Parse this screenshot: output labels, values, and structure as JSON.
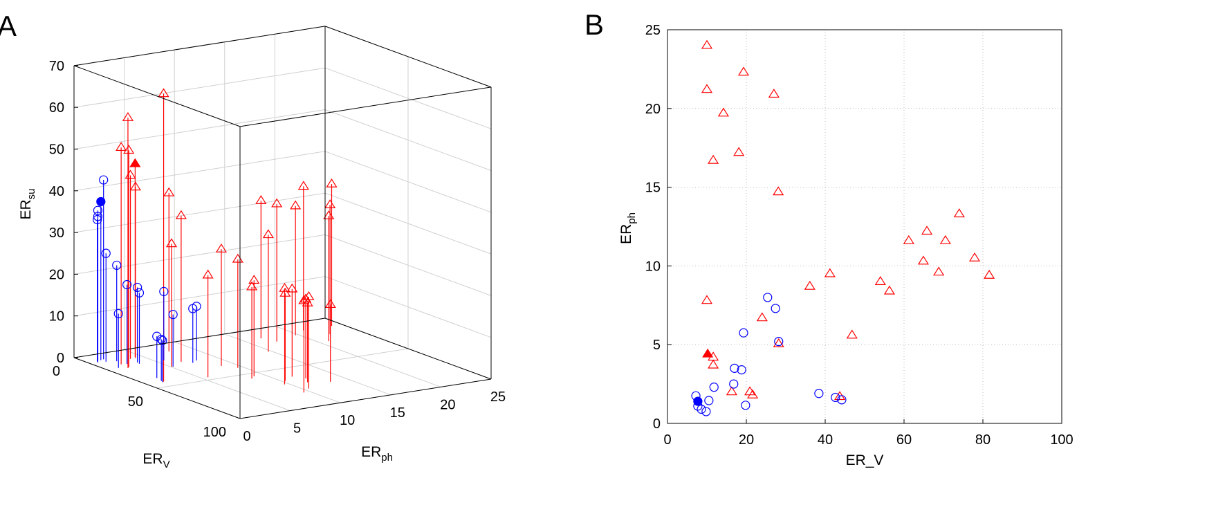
{
  "panel_labels": [
    "A",
    "B"
  ],
  "colors": {
    "triangle": "#ff0000",
    "circle": "#0000ff",
    "grid": "#d0d0d0",
    "axis": "#000000"
  },
  "chart_data": [
    {
      "type": "scatter3d-stem",
      "panel": "A",
      "xlabel": {
        "base": "ER",
        "sub": "V"
      },
      "ylabel": {
        "base": "ER",
        "sub": "ph"
      },
      "zlabel": {
        "base": "ER",
        "sub": "su"
      },
      "xlim": [
        0,
        100
      ],
      "ylim": [
        0,
        25
      ],
      "zlim": [
        0,
        70
      ],
      "xticks": [
        0,
        50,
        100
      ],
      "yticks": [
        0,
        5,
        10,
        15,
        20,
        25
      ],
      "zticks": [
        0,
        10,
        20,
        30,
        40,
        50,
        60,
        70
      ],
      "grid": true,
      "series": [
        {
          "name": "triangles",
          "marker": "triangle",
          "filled": false,
          "color": "#ff0000",
          "points": [
            [
              10.0,
              24.0,
              34
            ],
            [
              10.0,
              21.2,
              34.5
            ],
            [
              19.3,
              22.3,
              31
            ],
            [
              14.2,
              19.7,
              31
            ],
            [
              27.0,
              20.9,
              30
            ],
            [
              11.6,
              16.7,
              33
            ],
            [
              18.1,
              17.2,
              33
            ],
            [
              28.1,
              14.7,
              28
            ],
            [
              74.0,
              13.3,
              18.5
            ],
            [
              65.8,
              12.2,
              19
            ],
            [
              61.2,
              11.6,
              21
            ],
            [
              70.5,
              11.6,
              19
            ],
            [
              64.9,
              10.3,
              21
            ],
            [
              77.9,
              10.5,
              22
            ],
            [
              68.8,
              9.6,
              23
            ],
            [
              81.6,
              9.4,
              22
            ],
            [
              41.2,
              9.5,
              26
            ],
            [
              54.0,
              9.0,
              23
            ],
            [
              56.3,
              8.4,
              22
            ],
            [
              36.1,
              8.7,
              28
            ],
            [
              10.0,
              7.8,
              38
            ],
            [
              24.0,
              6.7,
              35
            ],
            [
              46.8,
              5.6,
              24.5
            ],
            [
              28.2,
              5.05,
              29.5
            ],
            [
              11.6,
              4.2,
              41
            ],
            [
              11.6,
              3.7,
              44
            ],
            [
              16.3,
              2.0,
              52
            ],
            [
              20.9,
              2.0,
              52
            ],
            [
              21.6,
              1.8,
              60
            ],
            [
              43.7,
              1.7,
              69
            ]
          ]
        },
        {
          "name": "triangle-highlight",
          "marker": "triangle",
          "filled": true,
          "color": "#ff0000",
          "points": [
            [
              10.2,
              4.4,
              46.3
            ]
          ]
        },
        {
          "name": "circles",
          "marker": "circle",
          "filled": false,
          "color": "#0000ff",
          "points": [
            [
              25.4,
              8.0,
              13
            ],
            [
              27.4,
              7.3,
              13
            ],
            [
              19.3,
              5.75,
              16.5
            ],
            [
              28.2,
              5.2,
              12.5
            ],
            [
              17.0,
              3.5,
              18
            ],
            [
              18.8,
              3.4,
              17
            ],
            [
              11.8,
              2.3,
              23
            ],
            [
              16.8,
              2.5,
              19
            ],
            [
              38.4,
              1.9,
              10
            ],
            [
              42.6,
              1.65,
              10
            ],
            [
              44.2,
              1.5,
              10
            ],
            [
              19.8,
              1.15,
              13
            ],
            [
              10.5,
              1.45,
              26
            ],
            [
              7.2,
              1.75,
              43
            ],
            [
              7.7,
              1.1,
              36
            ],
            [
              8.6,
              0.9,
              34
            ],
            [
              9.8,
              0.75,
              35
            ]
          ]
        },
        {
          "name": "circle-highlight",
          "marker": "circle",
          "filled": true,
          "color": "#0000ff",
          "points": [
            [
              7.7,
              1.4,
              38
            ]
          ]
        }
      ]
    },
    {
      "type": "scatter",
      "panel": "B",
      "xlabel": "ER_V",
      "ylabel": {
        "base": "ER",
        "sub": "ph"
      },
      "xlim": [
        0,
        100
      ],
      "ylim": [
        0,
        25
      ],
      "xticks": [
        0,
        20,
        40,
        60,
        80,
        100
      ],
      "yticks": [
        0,
        5,
        10,
        15,
        20,
        25
      ],
      "grid": true,
      "series": [
        {
          "name": "triangles",
          "marker": "triangle",
          "filled": false,
          "color": "#ff0000",
          "points": [
            [
              10.0,
              24.0
            ],
            [
              10.0,
              21.2
            ],
            [
              19.3,
              22.3
            ],
            [
              14.2,
              19.7
            ],
            [
              27.0,
              20.9
            ],
            [
              11.6,
              16.7
            ],
            [
              18.1,
              17.2
            ],
            [
              28.1,
              14.7
            ],
            [
              74.0,
              13.3
            ],
            [
              65.8,
              12.2
            ],
            [
              61.2,
              11.6
            ],
            [
              70.5,
              11.6
            ],
            [
              64.9,
              10.3
            ],
            [
              77.9,
              10.5
            ],
            [
              68.8,
              9.6
            ],
            [
              81.6,
              9.4
            ],
            [
              41.2,
              9.5
            ],
            [
              54.0,
              9.0
            ],
            [
              56.3,
              8.4
            ],
            [
              36.1,
              8.7
            ],
            [
              10.0,
              7.8
            ],
            [
              24.0,
              6.7
            ],
            [
              46.8,
              5.6
            ],
            [
              28.2,
              5.05
            ],
            [
              11.6,
              4.2
            ],
            [
              11.6,
              3.7
            ],
            [
              16.3,
              2.0
            ],
            [
              20.9,
              2.0
            ],
            [
              21.6,
              1.8
            ],
            [
              43.7,
              1.7
            ]
          ]
        },
        {
          "name": "triangle-highlight",
          "marker": "triangle",
          "filled": true,
          "color": "#ff0000",
          "points": [
            [
              10.2,
              4.4
            ]
          ]
        },
        {
          "name": "circles",
          "marker": "circle",
          "filled": false,
          "color": "#0000ff",
          "points": [
            [
              25.4,
              8.0
            ],
            [
              27.4,
              7.3
            ],
            [
              19.3,
              5.75
            ],
            [
              28.2,
              5.2
            ],
            [
              17.0,
              3.5
            ],
            [
              18.8,
              3.4
            ],
            [
              11.8,
              2.3
            ],
            [
              16.8,
              2.5
            ],
            [
              38.4,
              1.9
            ],
            [
              42.6,
              1.65
            ],
            [
              44.2,
              1.5
            ],
            [
              19.8,
              1.15
            ],
            [
              10.5,
              1.45
            ],
            [
              7.2,
              1.75
            ],
            [
              7.7,
              1.1
            ],
            [
              8.6,
              0.9
            ],
            [
              9.8,
              0.75
            ]
          ]
        },
        {
          "name": "circle-highlight",
          "marker": "circle",
          "filled": true,
          "color": "#0000ff",
          "points": [
            [
              7.7,
              1.4
            ]
          ]
        }
      ]
    }
  ]
}
